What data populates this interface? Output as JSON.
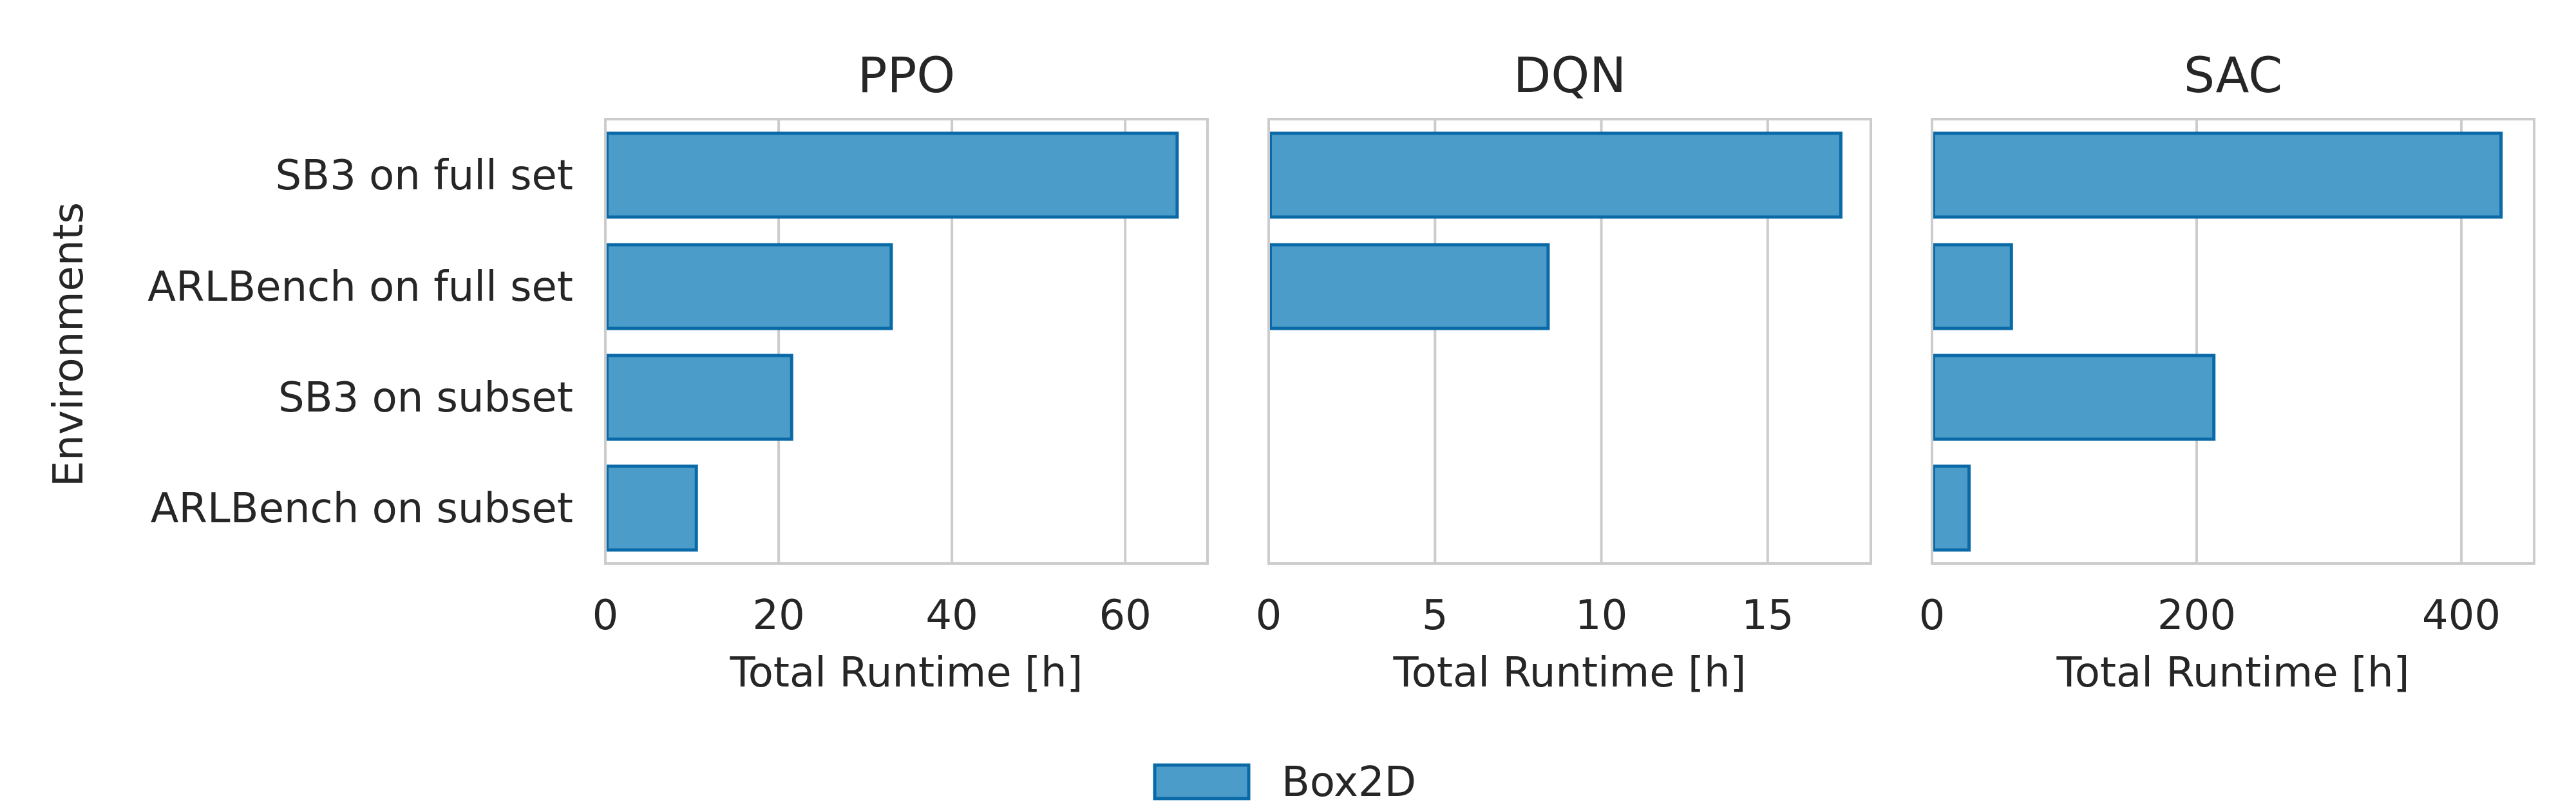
{
  "chart_data": [
    {
      "type": "bar",
      "orientation": "horizontal",
      "title": "PPO",
      "xlabel": "Total Runtime [h]",
      "ylabel": "Environments",
      "categories": [
        "SB3 on full set",
        "ARLBench on full set",
        "SB3 on subset",
        "ARLBench on subset"
      ],
      "series": [
        {
          "name": "Box2D",
          "values": [
            66,
            33,
            21.5,
            10.5
          ]
        }
      ],
      "xlim": [
        0,
        69.5
      ],
      "xticks": [
        0,
        20,
        40,
        60
      ],
      "grid": true
    },
    {
      "type": "bar",
      "orientation": "horizontal",
      "title": "DQN",
      "xlabel": "Total Runtime [h]",
      "ylabel": "",
      "categories": [
        "SB3 on full set",
        "ARLBench on full set",
        "SB3 on subset",
        "ARLBench on subset"
      ],
      "series": [
        {
          "name": "Box2D",
          "values": [
            17.2,
            8.4,
            0,
            0
          ]
        }
      ],
      "xlim": [
        0,
        18.1
      ],
      "xticks": [
        0,
        5,
        10,
        15
      ],
      "grid": true
    },
    {
      "type": "bar",
      "orientation": "horizontal",
      "title": "SAC",
      "xlabel": "Total Runtime [h]",
      "ylabel": "",
      "categories": [
        "SB3 on full set",
        "ARLBench on full set",
        "SB3 on subset",
        "ARLBench on subset"
      ],
      "series": [
        {
          "name": "Box2D",
          "values": [
            430,
            60,
            213,
            28
          ]
        }
      ],
      "xlim": [
        0,
        455
      ],
      "xticks": [
        0,
        200,
        400
      ],
      "grid": true
    }
  ],
  "legend": {
    "placement": "bottom-center",
    "entries": [
      {
        "label": "Box2D",
        "color": "#4c9cc9",
        "edge_color": "#0a6aa8"
      }
    ]
  },
  "colors": {
    "bar_fill": "#4c9cc9",
    "bar_edge": "#0a6aa8",
    "grid": "#cccccc",
    "text": "#262626"
  }
}
